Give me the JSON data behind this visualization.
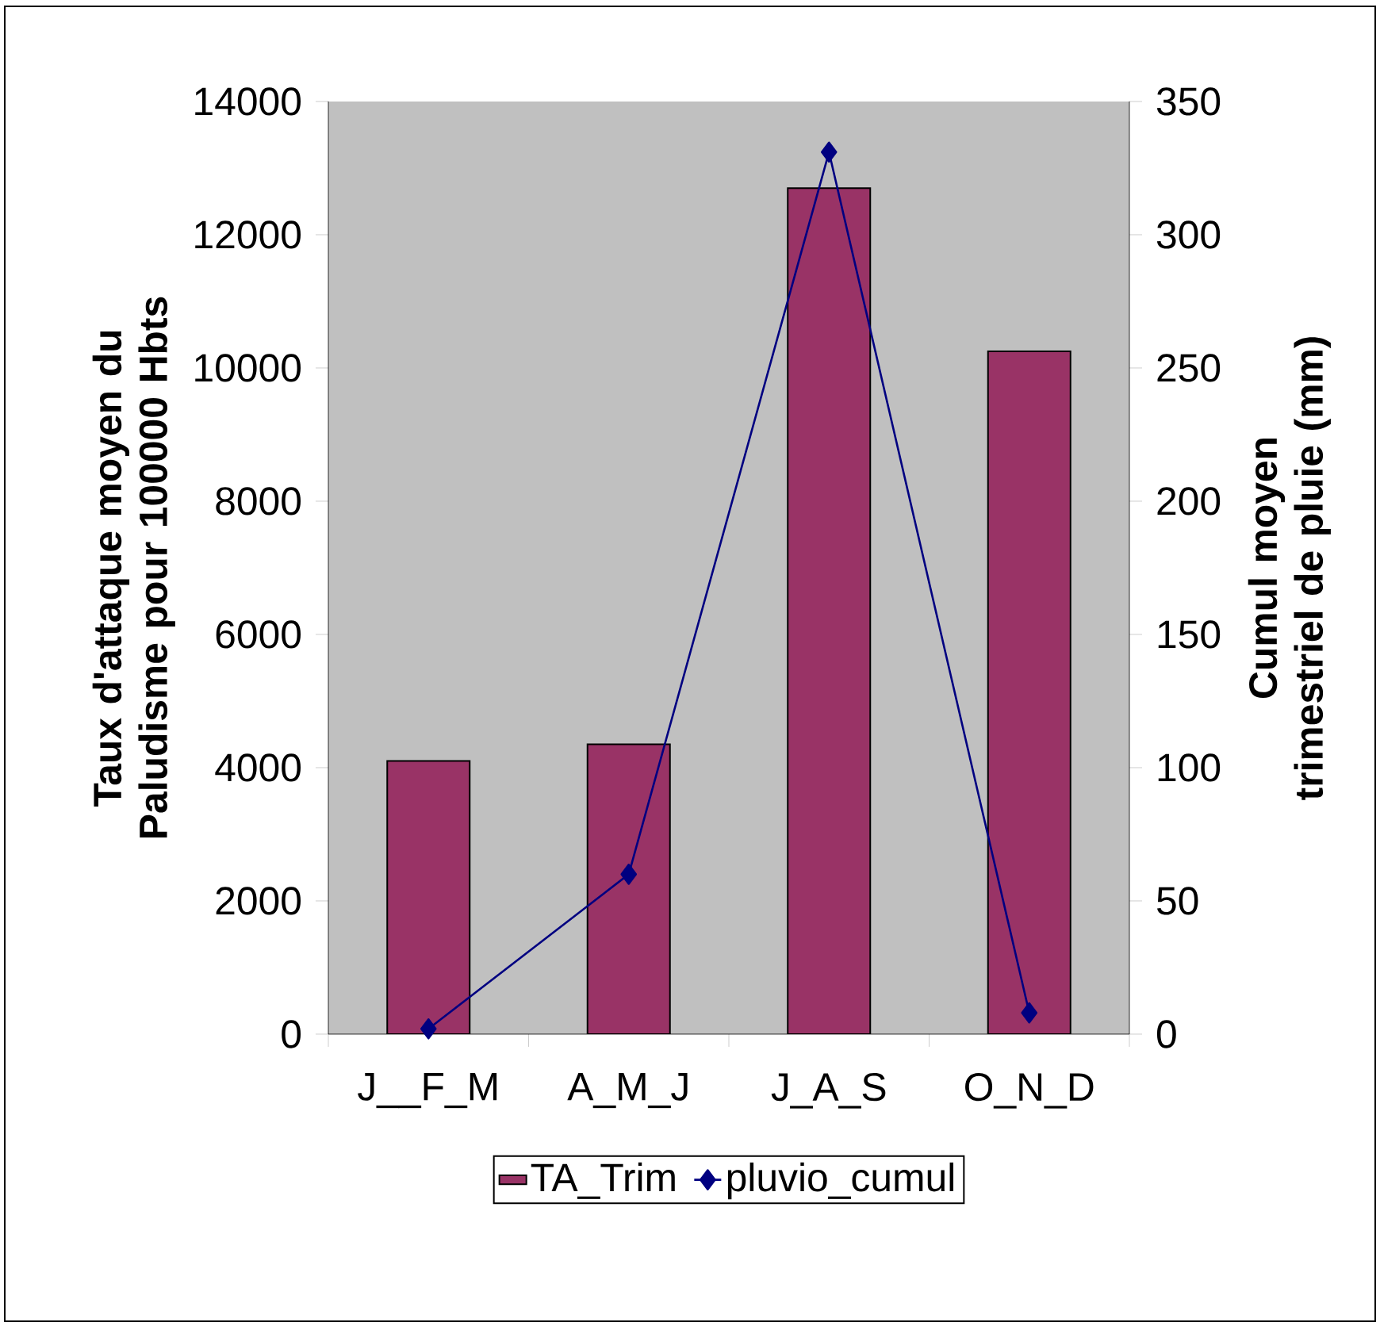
{
  "chart_data": {
    "type": "bar",
    "categories": [
      "J__F_M",
      "A_M_J",
      "J_A_S",
      "O_N_D"
    ],
    "ylabel": "Taux d'attaque moyen du Paludisme pour 100000 Hbts",
    "y2label": "Cumul moyen trimestriel de pluie (mm)",
    "series": [
      {
        "name": "TA_Trim",
        "color": "#993366",
        "values": [
          4100,
          4350,
          12700,
          10250
        ]
      },
      {
        "name": "pluvio_cumul",
        "type": "line",
        "axis": "y2",
        "color": "#000080",
        "values": [
          2,
          60,
          331,
          8
        ],
        "marker": "diamond",
        "line_style": "solid"
      }
    ],
    "ylim": [
      0,
      14000
    ],
    "yticks": [
      0,
      2000,
      4000,
      6000,
      8000,
      10000,
      12000,
      14000
    ],
    "y2lim": [
      0,
      350
    ],
    "y2ticks": [
      0,
      50,
      100,
      150,
      200,
      250,
      300,
      350
    ],
    "grid": false,
    "legend": "bottom"
  }
}
